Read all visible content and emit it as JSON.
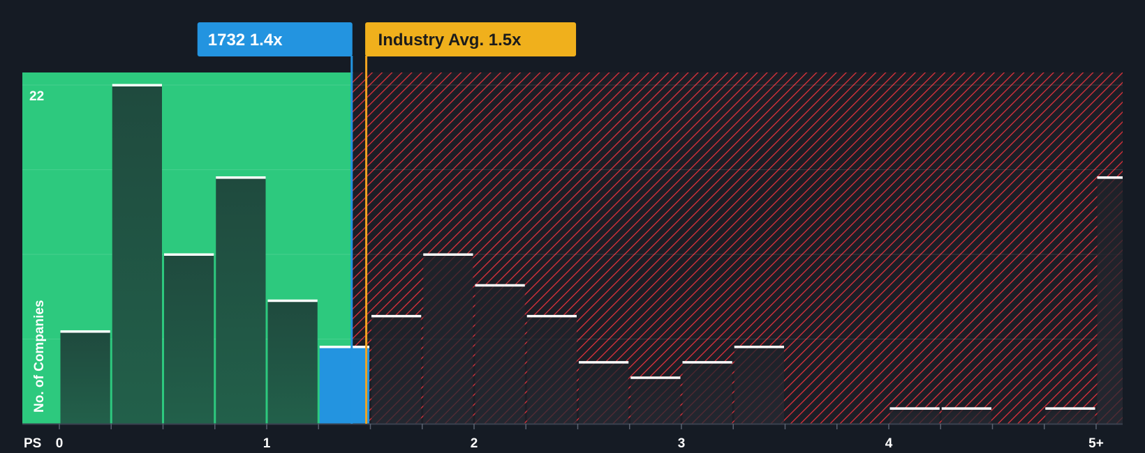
{
  "chart_data": {
    "type": "bar",
    "title": "",
    "xlabel": "PS",
    "ylabel": "No. of Companies",
    "y_max_label": "22",
    "ylim": [
      0,
      22
    ],
    "xlim": [
      0,
      5.2
    ],
    "x_ticks": [
      {
        "value": 0,
        "label": "0"
      },
      {
        "value": 1,
        "label": "1"
      },
      {
        "value": 2,
        "label": "2"
      },
      {
        "value": 3,
        "label": "3"
      },
      {
        "value": 4,
        "label": "4"
      },
      {
        "value": 5,
        "label": "5+"
      }
    ],
    "bins": [
      {
        "start": 0.0,
        "end": 0.25,
        "count": 6,
        "highlight": false
      },
      {
        "start": 0.25,
        "end": 0.5,
        "count": 22,
        "highlight": false
      },
      {
        "start": 0.5,
        "end": 0.75,
        "count": 11,
        "highlight": false
      },
      {
        "start": 0.75,
        "end": 1.0,
        "count": 16,
        "highlight": false
      },
      {
        "start": 1.0,
        "end": 1.25,
        "count": 8,
        "highlight": false
      },
      {
        "start": 1.25,
        "end": 1.5,
        "count": 5,
        "highlight": true
      },
      {
        "start": 1.5,
        "end": 1.75,
        "count": 7,
        "highlight": false
      },
      {
        "start": 1.75,
        "end": 2.0,
        "count": 11,
        "highlight": false
      },
      {
        "start": 2.0,
        "end": 2.25,
        "count": 9,
        "highlight": false
      },
      {
        "start": 2.25,
        "end": 2.5,
        "count": 7,
        "highlight": false
      },
      {
        "start": 2.5,
        "end": 2.75,
        "count": 4,
        "highlight": false
      },
      {
        "start": 2.75,
        "end": 3.0,
        "count": 3,
        "highlight": false
      },
      {
        "start": 3.0,
        "end": 3.25,
        "count": 4,
        "highlight": false
      },
      {
        "start": 3.25,
        "end": 3.5,
        "count": 5,
        "highlight": false
      },
      {
        "start": 4.0,
        "end": 4.25,
        "count": 1,
        "highlight": false
      },
      {
        "start": 4.25,
        "end": 4.5,
        "count": 1,
        "highlight": false
      },
      {
        "start": 4.75,
        "end": 5.0,
        "count": 1,
        "highlight": false
      },
      {
        "start": 5.0,
        "end": 5.2,
        "count": 16,
        "highlight": false
      }
    ],
    "company": {
      "label": "1732 1.4x",
      "value": 1.41
    },
    "industry": {
      "label": "Industry Avg. 1.5x",
      "value": 1.48
    },
    "colors": {
      "background": "#151b24",
      "undervalued_zone": "#2dc97e",
      "overvalued_hatch": "#e0323c",
      "bar_dark": "#1d4a3d",
      "bar_highlight": "#2394e0",
      "company_label": "#2394e0",
      "industry_label": "#f0b01c",
      "industry_line": "#f0a321",
      "bar_top": "#ffffff"
    }
  }
}
